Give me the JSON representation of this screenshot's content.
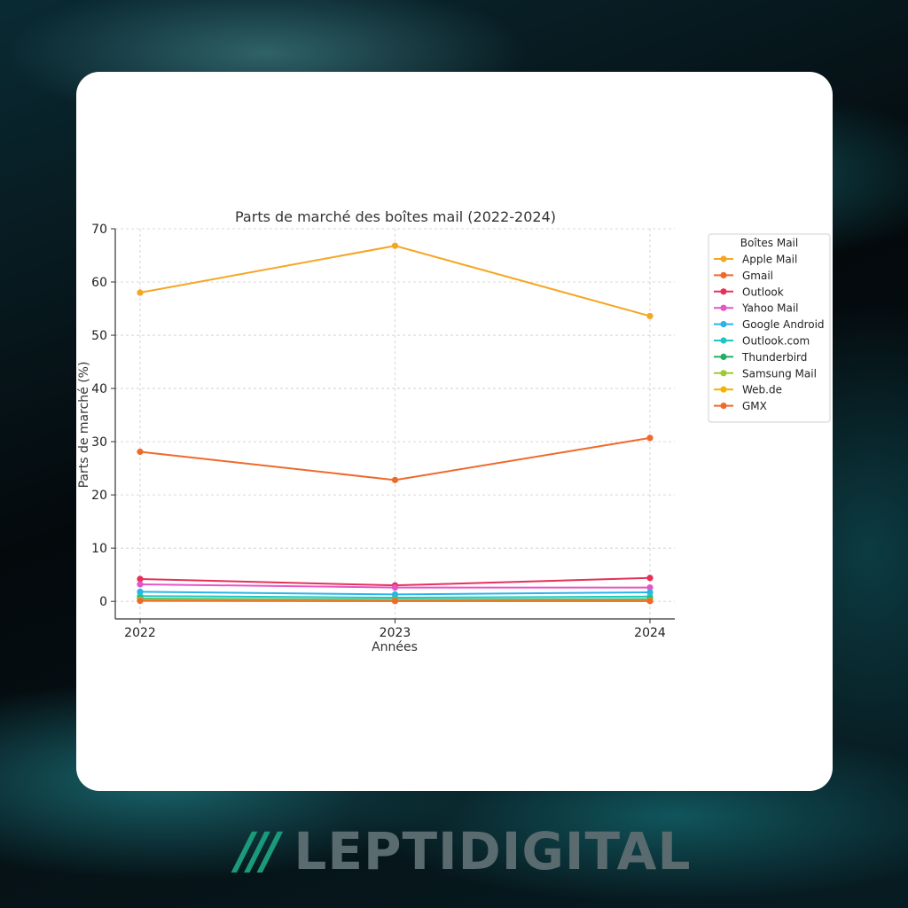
{
  "brand": {
    "slashes": "///",
    "name": "LEPTIDIGITAL"
  },
  "chart_data": {
    "type": "line",
    "title": "Parts de marché des boîtes mail (2022-2024)",
    "xlabel": "Années",
    "ylabel": "Parts de marché (%)",
    "x": [
      "2022",
      "2023",
      "2024"
    ],
    "ylim": [
      -3.3,
      70
    ],
    "yticks": [
      0,
      10,
      20,
      30,
      40,
      50,
      60,
      70
    ],
    "grid": true,
    "legend": {
      "title": "Boîtes Mail",
      "placement": "outside-right"
    },
    "series": [
      {
        "name": "Apple Mail",
        "color": "#f5a623",
        "values": [
          58.0,
          66.8,
          53.6
        ]
      },
      {
        "name": "Gmail",
        "color": "#ee6a2c",
        "values": [
          28.1,
          22.8,
          30.7
        ]
      },
      {
        "name": "Outlook",
        "color": "#e6305a",
        "values": [
          4.2,
          3.0,
          4.4
        ]
      },
      {
        "name": "Yahoo Mail",
        "color": "#e655c8",
        "values": [
          3.2,
          2.6,
          2.6
        ]
      },
      {
        "name": "Google Android",
        "color": "#2ab3e8",
        "values": [
          1.8,
          1.3,
          1.7
        ]
      },
      {
        "name": "Outlook.com",
        "color": "#1fc7c0",
        "values": [
          1.0,
          0.7,
          0.9
        ]
      },
      {
        "name": "Thunderbird",
        "color": "#20b060",
        "values": [
          0.5,
          0.3,
          0.4
        ]
      },
      {
        "name": "Samsung Mail",
        "color": "#9ccc2c",
        "values": [
          0.3,
          0.2,
          0.2
        ]
      },
      {
        "name": "Web.de",
        "color": "#f5b200",
        "values": [
          0.2,
          0.1,
          0.1
        ]
      },
      {
        "name": "GMX",
        "color": "#ee6a2c",
        "values": [
          0.1,
          0.05,
          0.05
        ]
      }
    ]
  }
}
